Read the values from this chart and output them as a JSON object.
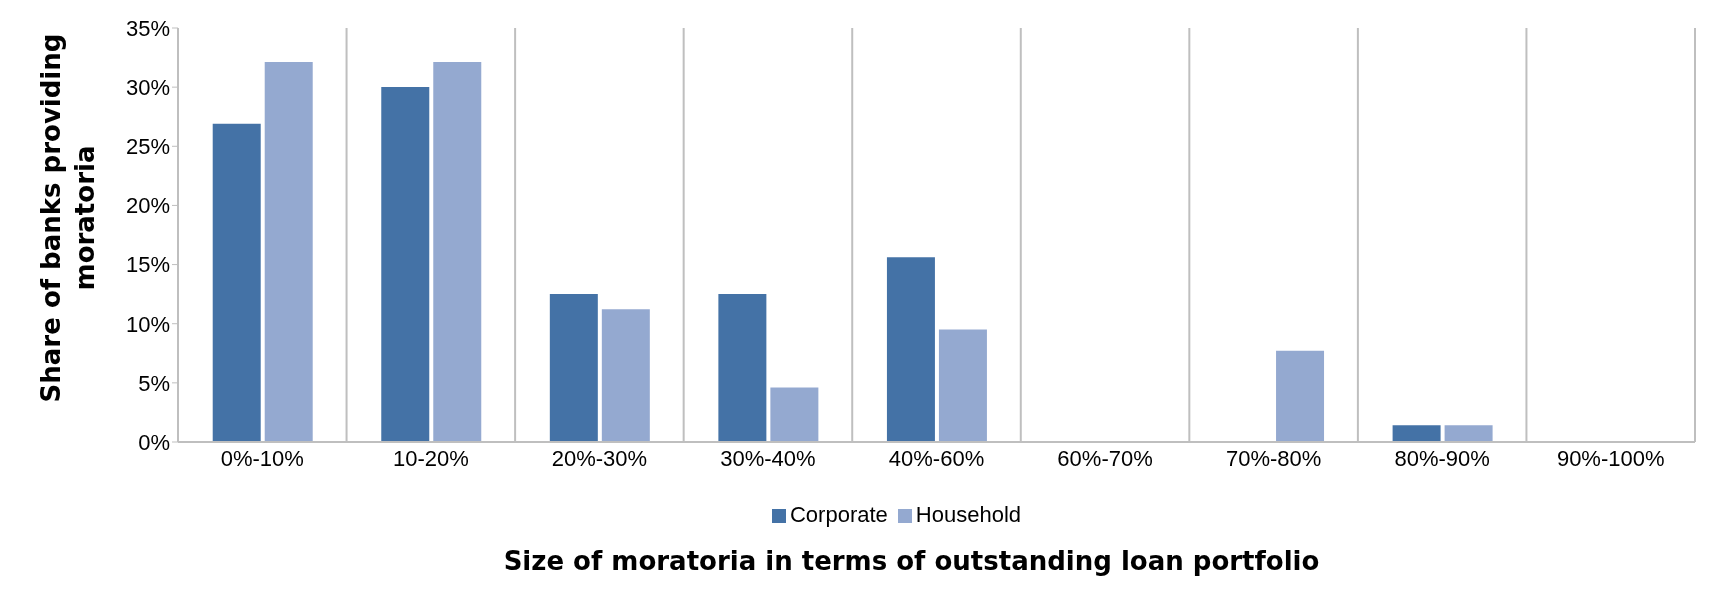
{
  "chart_data": {
    "type": "bar",
    "xlabel": "Size of moratoria in terms of outstanding loan portfolio",
    "ylabel": "Share of banks providing moratoria",
    "categories": [
      "0%-10%",
      "10-20%",
      "20%-30%",
      "30%-40%",
      "40%-60%",
      "60%-70%",
      "70%-80%",
      "80%-90%",
      "90%-100%"
    ],
    "series": [
      {
        "name": "Corporate",
        "color": "#4472a6",
        "values": [
          27.0,
          30.1,
          12.6,
          12.6,
          15.7,
          0,
          0,
          1.5,
          0
        ]
      },
      {
        "name": "Household",
        "color": "#94a9d0",
        "values": [
          32.2,
          32.2,
          11.3,
          4.7,
          9.6,
          0,
          7.8,
          1.5,
          0
        ]
      }
    ],
    "ylim": [
      0,
      35
    ],
    "yticks": [
      {
        "value": 0,
        "label": "0%"
      },
      {
        "value": 5,
        "label": "5%"
      },
      {
        "value": 10,
        "label": "10%"
      },
      {
        "value": 15,
        "label": "15%"
      },
      {
        "value": 20,
        "label": "20%"
      },
      {
        "value": 25,
        "label": "25%"
      },
      {
        "value": 30,
        "label": "30%"
      },
      {
        "value": 35,
        "label": "35%"
      }
    ],
    "grid": "x",
    "legend": "bottom"
  }
}
